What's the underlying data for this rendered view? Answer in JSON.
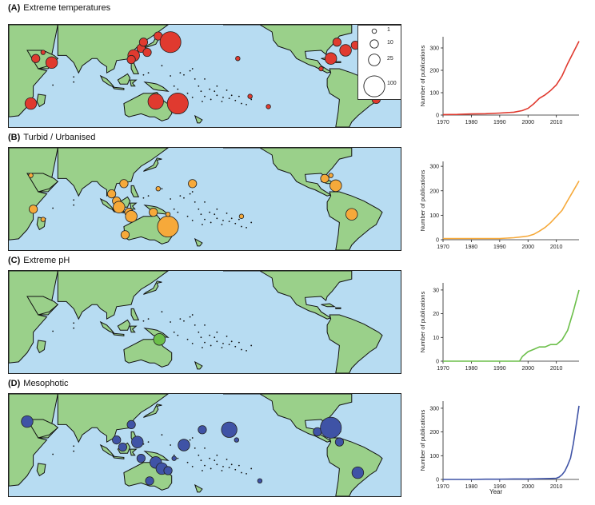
{
  "panels": [
    {
      "letter": "(A)",
      "title": "Extreme temperatures",
      "color": "#e03a2f",
      "bubbles": [
        {
          "lon": 42,
          "lat": 22,
          "size": 10
        },
        {
          "lon": 48,
          "lat": 28,
          "size": 1
        },
        {
          "lon": 55,
          "lat": 18,
          "size": 25
        },
        {
          "lon": 38,
          "lat": -22,
          "size": 25
        },
        {
          "lon": 122,
          "lat": 25,
          "size": 25
        },
        {
          "lon": 128,
          "lat": 32,
          "size": 10
        },
        {
          "lon": 133,
          "lat": 28,
          "size": 10
        },
        {
          "lon": 130,
          "lat": 38,
          "size": 10
        },
        {
          "lon": 142,
          "lat": 44,
          "size": 10
        },
        {
          "lon": 152,
          "lat": 38,
          "size": 100
        },
        {
          "lon": 120,
          "lat": 21,
          "size": 10
        },
        {
          "lon": 140,
          "lat": -20,
          "size": 50
        },
        {
          "lon": 158,
          "lat": -22,
          "size": 100
        },
        {
          "lon": 207,
          "lat": 22,
          "size": 1
        },
        {
          "lon": 217,
          "lat": -15,
          "size": 1
        },
        {
          "lon": 232,
          "lat": -25,
          "size": 1
        },
        {
          "lon": 283,
          "lat": 22,
          "size": 25
        },
        {
          "lon": 288,
          "lat": 38,
          "size": 10
        },
        {
          "lon": 295,
          "lat": 30,
          "size": 25
        },
        {
          "lon": 303,
          "lat": 35,
          "size": 10
        },
        {
          "lon": 275,
          "lat": 12,
          "size": 1
        },
        {
          "lon": 320,
          "lat": -18,
          "size": 10
        }
      ],
      "legend": [
        "1",
        "10",
        "25",
        "100"
      ],
      "chart": {
        "years": [
          1970,
          1975,
          1980,
          1985,
          1990,
          1995,
          1998,
          2000,
          2002,
          2004,
          2006,
          2008,
          2010,
          2012,
          2014,
          2016,
          2018
        ],
        "values": [
          2,
          3,
          5,
          6,
          9,
          13,
          20,
          30,
          50,
          75,
          90,
          110,
          135,
          175,
          230,
          280,
          330
        ],
        "ylim": [
          0,
          350
        ],
        "yticks": [
          0,
          100,
          200,
          300
        ]
      }
    },
    {
      "letter": "(B)",
      "title": "Turbid / Urbanised",
      "color": "#f6a93a",
      "bubbles": [
        {
          "lon": 38,
          "lat": 28,
          "size": 1
        },
        {
          "lon": 40,
          "lat": -5,
          "size": 10
        },
        {
          "lon": 48,
          "lat": -15,
          "size": 1
        },
        {
          "lon": 104,
          "lat": 10,
          "size": 10
        },
        {
          "lon": 108,
          "lat": 3,
          "size": 10
        },
        {
          "lon": 114,
          "lat": 20,
          "size": 10
        },
        {
          "lon": 110,
          "lat": -3,
          "size": 25
        },
        {
          "lon": 118,
          "lat": -8,
          "size": 10
        },
        {
          "lon": 120,
          "lat": -12,
          "size": 25
        },
        {
          "lon": 138,
          "lat": -8,
          "size": 10
        },
        {
          "lon": 142,
          "lat": 15,
          "size": 1
        },
        {
          "lon": 115,
          "lat": -30,
          "size": 10
        },
        {
          "lon": 150,
          "lat": -22,
          "size": 100
        },
        {
          "lon": 150,
          "lat": -10,
          "size": 1
        },
        {
          "lon": 170,
          "lat": 20,
          "size": 10
        },
        {
          "lon": 210,
          "lat": -12,
          "size": 1
        },
        {
          "lon": 278,
          "lat": 25,
          "size": 10
        },
        {
          "lon": 283,
          "lat": 28,
          "size": 1
        },
        {
          "lon": 287,
          "lat": 18,
          "size": 25
        },
        {
          "lon": 300,
          "lat": -10,
          "size": 25
        }
      ],
      "chart": {
        "years": [
          1970,
          1975,
          1980,
          1985,
          1990,
          1995,
          1998,
          2000,
          2002,
          2004,
          2006,
          2008,
          2010,
          2012,
          2014,
          2016,
          2018
        ],
        "values": [
          5,
          5,
          5,
          5,
          5,
          8,
          12,
          15,
          22,
          35,
          50,
          70,
          95,
          120,
          160,
          200,
          240
        ],
        "ylim": [
          0,
          320
        ],
        "yticks": [
          0,
          100,
          200,
          300
        ]
      }
    },
    {
      "letter": "(C)",
      "title": "Extreme pH",
      "color": "#6cbf4a",
      "bubbles": [
        {
          "lon": 143,
          "lat": -12,
          "size": 25
        }
      ],
      "chart": {
        "years": [
          1970,
          1975,
          1980,
          1985,
          1990,
          1994,
          1997,
          1998,
          2000,
          2002,
          2004,
          2006,
          2008,
          2010,
          2012,
          2014,
          2016,
          2018
        ],
        "values": [
          0,
          0,
          0,
          0,
          0,
          0,
          0,
          2,
          4,
          5,
          6,
          6,
          7,
          7,
          9,
          13,
          21,
          30
        ],
        "ylim": [
          0,
          33
        ],
        "yticks": [
          0,
          10,
          20,
          30
        ]
      }
    },
    {
      "letter": "(D)",
      "title": "Mesophotic",
      "color": "#3f53a6",
      "bubbles": [
        {
          "lon": 35,
          "lat": 28,
          "size": 25
        },
        {
          "lon": 108,
          "lat": 10,
          "size": 10
        },
        {
          "lon": 113,
          "lat": 3,
          "size": 10
        },
        {
          "lon": 120,
          "lat": 25,
          "size": 10
        },
        {
          "lon": 125,
          "lat": 8,
          "size": 25
        },
        {
          "lon": 128,
          "lat": -8,
          "size": 10
        },
        {
          "lon": 135,
          "lat": -30,
          "size": 10
        },
        {
          "lon": 140,
          "lat": -12,
          "size": 25
        },
        {
          "lon": 145,
          "lat": -18,
          "size": 25
        },
        {
          "lon": 150,
          "lat": -20,
          "size": 10
        },
        {
          "lon": 155,
          "lat": -8,
          "size": 1
        },
        {
          "lon": 163,
          "lat": 5,
          "size": 25
        },
        {
          "lon": 178,
          "lat": 20,
          "size": 10
        },
        {
          "lon": 200,
          "lat": 20,
          "size": 50
        },
        {
          "lon": 206,
          "lat": 10,
          "size": 1
        },
        {
          "lon": 225,
          "lat": -30,
          "size": 1
        },
        {
          "lon": 272,
          "lat": 18,
          "size": 10
        },
        {
          "lon": 280,
          "lat": 25,
          "size": 25
        },
        {
          "lon": 283,
          "lat": 22,
          "size": 100
        },
        {
          "lon": 290,
          "lat": 8,
          "size": 10
        },
        {
          "lon": 305,
          "lat": -22,
          "size": 25
        }
      ],
      "chart": {
        "years": [
          1970,
          1975,
          1980,
          1985,
          1990,
          1995,
          2000,
          2005,
          2008,
          2010,
          2011,
          2012,
          2013,
          2014,
          2015,
          2016,
          2017,
          2018
        ],
        "values": [
          0,
          0,
          0,
          1,
          1,
          2,
          2,
          3,
          4,
          5,
          10,
          20,
          35,
          60,
          90,
          150,
          230,
          310
        ],
        "ylim": [
          0,
          330
        ],
        "yticks": [
          0,
          100,
          200,
          300
        ]
      }
    }
  ],
  "axes": {
    "ylabel": "Number of publications",
    "xticks": [
      1970,
      1980,
      1990,
      2000,
      2010
    ],
    "xlabel": "Year"
  },
  "colors": {
    "ocean": "#b7dcf2",
    "land": "#9ad08a"
  }
}
